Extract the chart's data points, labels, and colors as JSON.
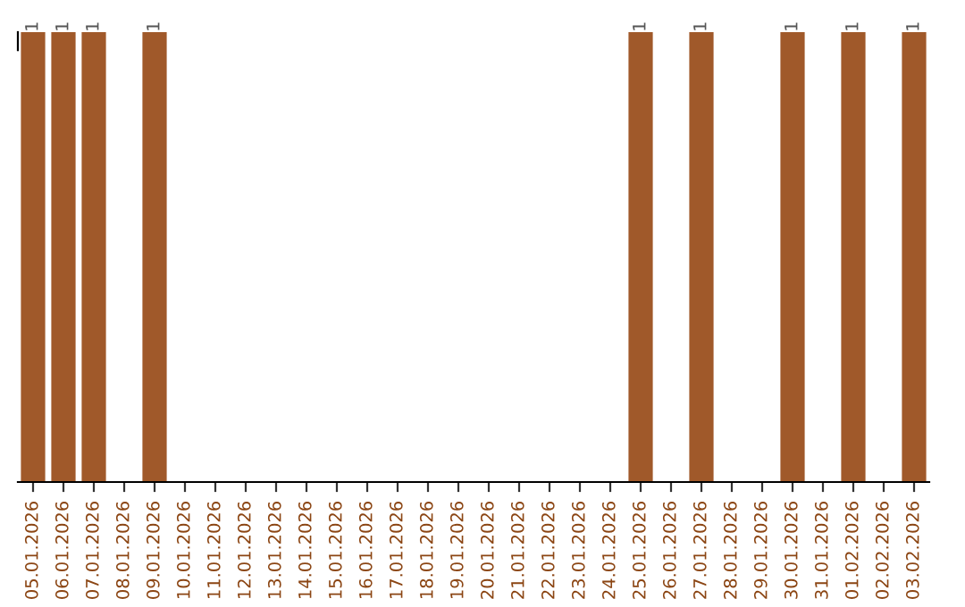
{
  "chart_data": {
    "type": "bar",
    "categories": [
      "05.01.2026",
      "06.01.2026",
      "07.01.2026",
      "08.01.2026",
      "09.01.2026",
      "10.01.2026",
      "11.01.2026",
      "12.01.2026",
      "13.01.2026",
      "14.01.2026",
      "15.01.2026",
      "16.01.2026",
      "17.01.2026",
      "18.01.2026",
      "19.01.2026",
      "20.01.2026",
      "21.01.2026",
      "22.01.2026",
      "23.01.2026",
      "24.01.2026",
      "25.01.2026",
      "26.01.2026",
      "27.01.2026",
      "28.01.2026",
      "29.01.2026",
      "30.01.2026",
      "31.01.2026",
      "01.02.2026",
      "02.02.2026",
      "03.02.2026"
    ],
    "values": [
      1,
      1,
      1,
      0,
      1,
      0,
      0,
      0,
      0,
      0,
      0,
      0,
      0,
      0,
      0,
      0,
      0,
      0,
      0,
      0,
      1,
      0,
      1,
      0,
      0,
      1,
      0,
      1,
      0,
      1
    ],
    "value_labels": [
      "1",
      "1",
      "1",
      null,
      "1",
      null,
      null,
      null,
      null,
      null,
      null,
      null,
      null,
      null,
      null,
      null,
      null,
      null,
      null,
      null,
      "1",
      null,
      "1",
      null,
      null,
      "1",
      null,
      "1",
      null,
      "1"
    ],
    "color": "#a0592a",
    "grid": false,
    "legend": false
  }
}
